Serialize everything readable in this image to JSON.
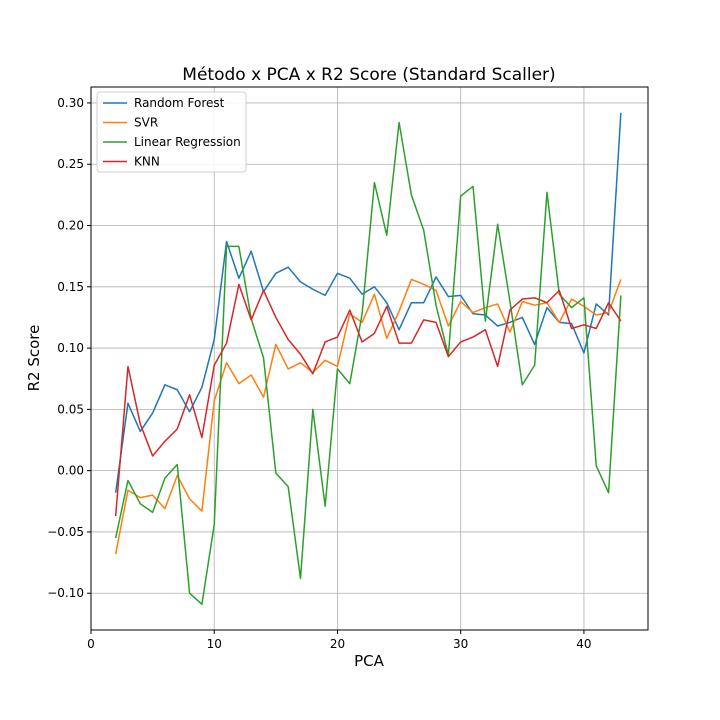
{
  "chart_data": {
    "type": "line",
    "title": "Método x PCA x R2 Score (Standard Scaller)",
    "xlabel": "PCA",
    "ylabel": "R2 Score",
    "xlim": [
      0,
      45.2
    ],
    "ylim": [
      -0.13,
      0.313
    ],
    "x_ticks": [
      0,
      10,
      20,
      30,
      40
    ],
    "x_tick_labels": [
      "0",
      "10",
      "20",
      "30",
      "40"
    ],
    "y_ticks": [
      -0.1,
      -0.05,
      0.0,
      0.05,
      0.1,
      0.15,
      0.2,
      0.25,
      0.3
    ],
    "y_tick_labels": [
      "−0.10",
      "−0.05",
      "0.00",
      "0.05",
      "0.10",
      "0.15",
      "0.20",
      "0.25",
      "0.30"
    ],
    "grid": true,
    "legend_position": "top-left",
    "x": [
      2,
      3,
      4,
      5,
      6,
      7,
      8,
      9,
      10,
      11,
      12,
      13,
      14,
      15,
      16,
      17,
      18,
      19,
      20,
      21,
      22,
      23,
      24,
      25,
      26,
      27,
      28,
      29,
      30,
      31,
      32,
      33,
      34,
      35,
      36,
      37,
      38,
      39,
      40,
      41,
      42,
      43
    ],
    "series": [
      {
        "name": "Random Forest",
        "color": "#1f77b4",
        "values": [
          -0.018,
          0.055,
          0.032,
          0.047,
          0.07,
          0.066,
          0.048,
          0.068,
          0.107,
          0.187,
          0.157,
          0.179,
          0.146,
          0.161,
          0.166,
          0.154,
          0.148,
          0.143,
          0.161,
          0.157,
          0.144,
          0.15,
          0.137,
          0.115,
          0.137,
          0.137,
          0.158,
          0.142,
          0.143,
          0.128,
          0.127,
          0.118,
          0.121,
          0.125,
          0.103,
          0.133,
          0.121,
          0.12,
          0.096,
          0.136,
          0.127,
          0.292
        ]
      },
      {
        "name": "SVR",
        "color": "#ff7f0e",
        "values": [
          -0.068,
          -0.016,
          -0.022,
          -0.02,
          -0.031,
          -0.004,
          -0.023,
          -0.033,
          0.057,
          0.088,
          0.071,
          0.078,
          0.06,
          0.103,
          0.083,
          0.088,
          0.08,
          0.09,
          0.085,
          0.128,
          0.121,
          0.144,
          0.108,
          0.13,
          0.156,
          0.152,
          0.147,
          0.118,
          0.138,
          0.129,
          0.133,
          0.136,
          0.113,
          0.138,
          0.135,
          0.137,
          0.121,
          0.14,
          0.134,
          0.127,
          0.129,
          0.156
        ]
      },
      {
        "name": "Linear Regression",
        "color": "#2ca02c",
        "values": [
          -0.055,
          -0.008,
          -0.027,
          -0.034,
          -0.006,
          0.005,
          -0.1,
          -0.109,
          -0.044,
          0.183,
          0.183,
          0.124,
          0.092,
          -0.002,
          -0.013,
          -0.088,
          0.05,
          -0.029,
          0.083,
          0.071,
          0.128,
          0.235,
          0.192,
          0.284,
          0.225,
          0.196,
          0.135,
          0.094,
          0.224,
          0.232,
          0.122,
          0.201,
          0.138,
          0.07,
          0.086,
          0.227,
          0.144,
          0.133,
          0.141,
          0.004,
          -0.018,
          0.143
        ]
      },
      {
        "name": "KNN",
        "color": "#d62728",
        "values": [
          -0.037,
          0.085,
          0.038,
          0.012,
          0.024,
          0.034,
          0.062,
          0.027,
          0.086,
          0.104,
          0.152,
          0.123,
          0.147,
          0.125,
          0.107,
          0.095,
          0.079,
          0.105,
          0.109,
          0.131,
          0.105,
          0.112,
          0.134,
          0.104,
          0.104,
          0.123,
          0.121,
          0.093,
          0.105,
          0.109,
          0.115,
          0.085,
          0.131,
          0.14,
          0.141,
          0.137,
          0.147,
          0.116,
          0.119,
          0.116,
          0.137,
          0.122
        ]
      }
    ]
  }
}
